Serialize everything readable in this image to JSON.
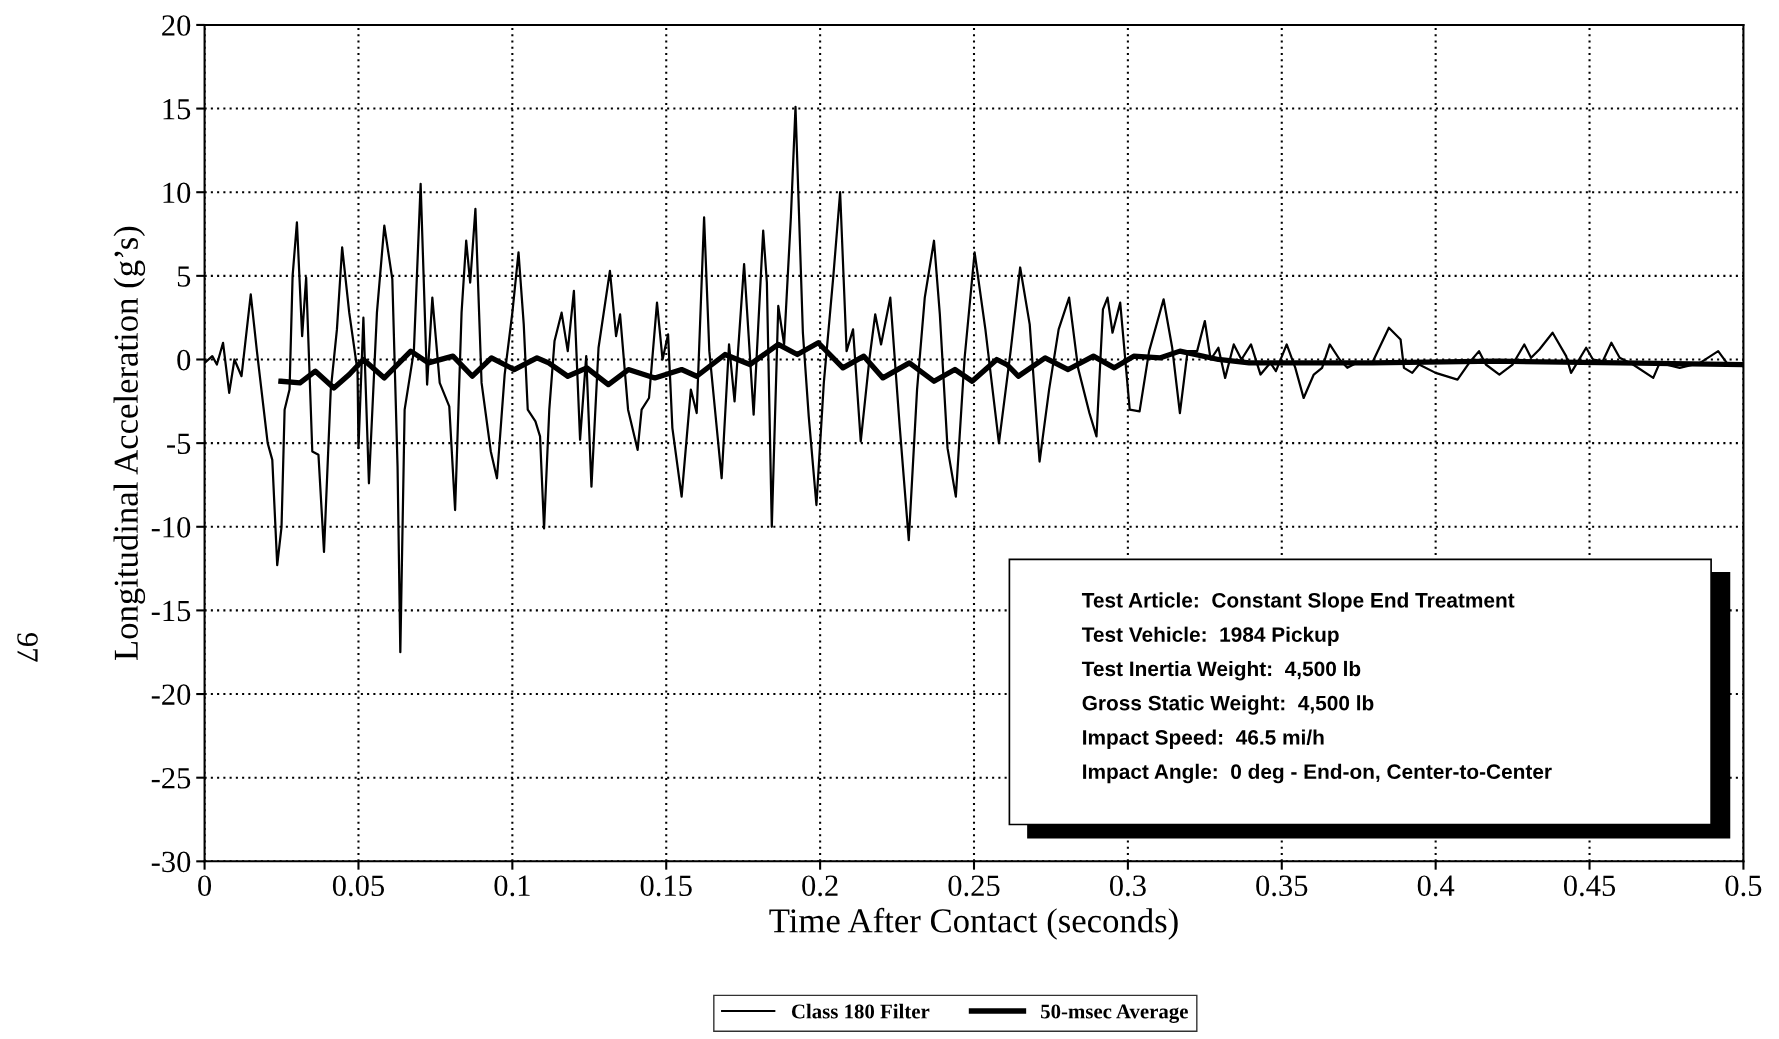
{
  "chart_data": {
    "type": "line",
    "xlabel": "Time After Contact (seconds)",
    "ylabel": "Longitudinal Acceleration (g’s)",
    "xlim": [
      0,
      0.5
    ],
    "xticks": [
      0,
      0.05,
      0.1,
      0.15,
      0.2,
      0.25,
      0.3,
      0.35,
      0.4,
      0.45,
      0.5
    ],
    "ylim": [
      -30,
      20
    ],
    "yticks": [
      -30,
      -25,
      -20,
      -15,
      -10,
      -5,
      0,
      5,
      10,
      15,
      20
    ],
    "grid": true,
    "legend": "bottom",
    "line_style": "solid",
    "marker": "none",
    "series": [
      {
        "name": "Class 180 Filter",
        "color": "#000000",
        "x": [
          0,
          0.0025,
          0.004,
          0.006,
          0.008,
          0.0097,
          0.012,
          0.015,
          0.017,
          0.0205,
          0.022,
          0.0236,
          0.025,
          0.026,
          0.0276,
          0.0286,
          0.03,
          0.0317,
          0.033,
          0.035,
          0.037,
          0.0388,
          0.041,
          0.043,
          0.0447,
          0.047,
          0.0497,
          0.05,
          0.0516,
          0.0534,
          0.056,
          0.0584,
          0.061,
          0.0627,
          0.0636,
          0.065,
          0.068,
          0.0702,
          0.0723,
          0.074,
          0.0764,
          0.0795,
          0.0814,
          0.0835,
          0.085,
          0.0863,
          0.088,
          0.09,
          0.093,
          0.095,
          0.0975,
          0.1,
          0.102,
          0.1037,
          0.105,
          0.1075,
          0.109,
          0.1103,
          0.112,
          0.1137,
          0.116,
          0.118,
          0.12,
          0.122,
          0.124,
          0.1257,
          0.128,
          0.1317,
          0.1337,
          0.135,
          0.1376,
          0.1407,
          0.142,
          0.1444,
          0.147,
          0.1488,
          0.1506,
          0.152,
          0.155,
          0.158,
          0.1599,
          0.1623,
          0.164,
          0.168,
          0.1704,
          0.1722,
          0.1753,
          0.1784,
          0.1815,
          0.1827,
          0.1843,
          0.1864,
          0.1883,
          0.1905,
          0.192,
          0.1944,
          0.1963,
          0.1988,
          0.2012,
          0.2043,
          0.2065,
          0.2086,
          0.2107,
          0.2132,
          0.216,
          0.2179,
          0.2198,
          0.2228,
          0.2259,
          0.2288,
          0.2315,
          0.234,
          0.237,
          0.2389,
          0.2414,
          0.2441,
          0.2469,
          0.2502,
          0.2537,
          0.2581,
          0.2619,
          0.265,
          0.2681,
          0.2713,
          0.2744,
          0.2775,
          0.2809,
          0.2838,
          0.2875,
          0.2898,
          0.2919,
          0.2934,
          0.295,
          0.2975,
          0.3006,
          0.3038,
          0.3069,
          0.3116,
          0.3144,
          0.3169,
          0.3194,
          0.3225,
          0.325,
          0.3269,
          0.3294,
          0.3316,
          0.3344,
          0.3369,
          0.34,
          0.3431,
          0.3463,
          0.3481,
          0.3516,
          0.3544,
          0.3571,
          0.3604,
          0.3631,
          0.3656,
          0.3688,
          0.3713,
          0.3744,
          0.3794,
          0.3848,
          0.3886,
          0.3897,
          0.3924,
          0.3946,
          0.4,
          0.4071,
          0.4109,
          0.4141,
          0.4163,
          0.4207,
          0.425,
          0.4288,
          0.431,
          0.4337,
          0.438,
          0.4424,
          0.444,
          0.4489,
          0.4511,
          0.4543,
          0.4571,
          0.4598,
          0.4641,
          0.4707,
          0.4728,
          0.4793,
          0.4859,
          0.4918,
          0.4946,
          0.4984,
          0.5
        ],
        "values": [
          -0.2,
          0.2,
          -0.3,
          1.0,
          -2.0,
          0,
          -1.0,
          3.9,
          0.5,
          -5.0,
          -6.0,
          -12.3,
          -10.0,
          -3.0,
          -1.8,
          5.0,
          8.2,
          1.4,
          4.9,
          -5.5,
          -5.7,
          -11.5,
          -1.8,
          1.8,
          6.7,
          2.8,
          -0.7,
          -5.3,
          2.5,
          -7.4,
          2.8,
          8.0,
          4.8,
          -6.4,
          -17.5,
          -3.0,
          0.5,
          10.5,
          -1.5,
          3.7,
          -1.4,
          -2.8,
          -9.0,
          2.8,
          7.1,
          4.6,
          9.0,
          -1.4,
          -5.5,
          -7.1,
          -0.9,
          2.8,
          6.4,
          2.1,
          -3.0,
          -3.7,
          -4.6,
          -10.1,
          -3.0,
          1.1,
          2.8,
          0.5,
          4.1,
          -4.8,
          0.2,
          -7.6,
          0.7,
          5.3,
          1.4,
          2.7,
          -3.0,
          -5.4,
          -3.0,
          -2.3,
          3.4,
          0,
          1.5,
          -4.1,
          -8.2,
          -1.8,
          -3.2,
          8.5,
          0.5,
          -7.1,
          0.9,
          -2.5,
          5.7,
          -3.3,
          7.7,
          4.6,
          -10.0,
          3.2,
          0.9,
          8.5,
          15.1,
          1.6,
          -3.4,
          -8.7,
          -1.4,
          5.0,
          10.0,
          0.5,
          1.8,
          -4.9,
          0,
          2.7,
          0.9,
          3.7,
          -4.1,
          -10.8,
          -1.8,
          3.7,
          7.1,
          2.7,
          -5.3,
          -8.2,
          0,
          6.4,
          1.8,
          -5.0,
          0.5,
          5.5,
          2.1,
          -6.1,
          -1.8,
          1.8,
          3.7,
          -0.5,
          -3.2,
          -4.6,
          3.0,
          3.7,
          1.6,
          3.4,
          -3.0,
          -3.1,
          0.5,
          3.6,
          0.7,
          -3.2,
          0.5,
          0.5,
          2.3,
          0,
          0.7,
          -1.1,
          0.9,
          0,
          0.9,
          -0.9,
          -0.2,
          -0.7,
          0.9,
          -0.5,
          -2.3,
          -0.9,
          -0.5,
          0.9,
          0,
          -0.5,
          -0.2,
          -0.2,
          1.9,
          1.2,
          -0.5,
          -0.8,
          -0.3,
          -0.8,
          -1.2,
          -0.2,
          0.5,
          -0.3,
          -0.9,
          -0.3,
          0.9,
          0.1,
          0.6,
          1.6,
          0.2,
          -0.8,
          0.7,
          0,
          -0.1,
          1.0,
          0.1,
          -0.3,
          -1.1,
          -0.2,
          -0.5,
          -0.2,
          0.5,
          -0.2,
          -0.3,
          -0.3
        ]
      },
      {
        "name": "50-msec Average",
        "color": "#000000",
        "x": [
          0.0248,
          0.031,
          0.036,
          0.042,
          0.047,
          0.0516,
          0.0584,
          0.067,
          0.0727,
          0.0807,
          0.087,
          0.0932,
          0.1006,
          0.108,
          0.1118,
          0.118,
          0.1242,
          0.1312,
          0.1377,
          0.1463,
          0.155,
          0.1599,
          0.1691,
          0.1772,
          0.1864,
          0.1926,
          0.1994,
          0.2074,
          0.2142,
          0.2204,
          0.229,
          0.237,
          0.2438,
          0.2494,
          0.2574,
          0.2607,
          0.2644,
          0.2731,
          0.2806,
          0.2888,
          0.2956,
          0.3019,
          0.3106,
          0.3169,
          0.3294,
          0.3394,
          0.3544,
          0.3794,
          0.42,
          0.46,
          0.5
        ],
        "values": [
          -1.3,
          -1.4,
          -0.7,
          -1.7,
          -0.9,
          0,
          -1.1,
          0.5,
          -0.2,
          0.2,
          -1.0,
          0.1,
          -0.6,
          0.1,
          -0.2,
          -1.0,
          -0.5,
          -1.5,
          -0.6,
          -1.1,
          -0.6,
          -1.0,
          0.3,
          -0.3,
          0.9,
          0.3,
          1.0,
          -0.5,
          0.2,
          -1.1,
          -0.2,
          -1.3,
          -0.6,
          -1.3,
          0,
          -0.3,
          -1.0,
          0.1,
          -0.6,
          0.2,
          -0.5,
          0.2,
          0.1,
          0.5,
          0,
          -0.2,
          -0.2,
          -0.2,
          -0.1,
          -0.2,
          -0.3
        ]
      }
    ],
    "annotations": [
      "Test Article:  Constant Slope End Treatment",
      "Test Vehicle:  1984 Pickup",
      "Test Inertia Weight:  4,500 lb",
      "Gross Static Weight:  4,500 lb",
      "Impact Speed:  46.5 mi/h",
      "Impact Angle:  0 deg - End-on, Center-to-Center",
      "97"
    ]
  }
}
